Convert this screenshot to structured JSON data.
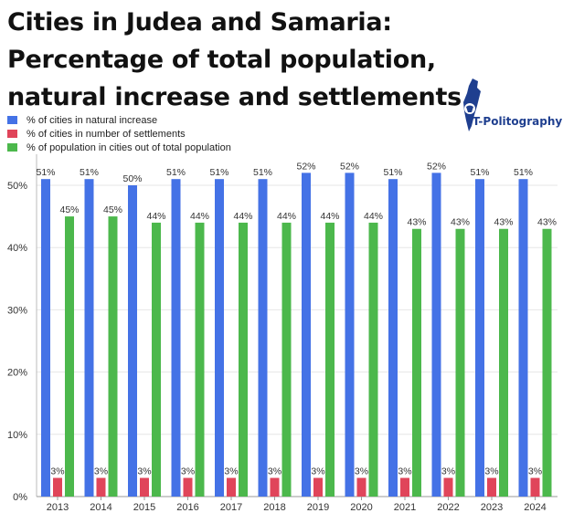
{
  "title": "Cities in Judea and Samaria: Percentage of total population, natural increase and settlements",
  "brand": {
    "name": "T-Politography",
    "icon": "map-icon"
  },
  "chart_data": {
    "type": "bar",
    "title": "Cities in Judea and Samaria: Percentage of total population, natural increase and settlements",
    "xlabel": "",
    "ylabel": "",
    "categories": [
      "2013",
      "2014",
      "2015",
      "2016",
      "2017",
      "2018",
      "2019",
      "2020",
      "2021",
      "2022",
      "2023",
      "2024"
    ],
    "series": [
      {
        "name": "% of cities in natural increase",
        "color": "#4472e6",
        "values": [
          51,
          51,
          50,
          51,
          51,
          51,
          52,
          52,
          51,
          52,
          51,
          51
        ],
        "labels": [
          "51%",
          "51%",
          "50%",
          "51%",
          "51%",
          "51%",
          "52%",
          "52%",
          "51%",
          "52%",
          "51%",
          "51%"
        ]
      },
      {
        "name": "% of cities in number of settlements",
        "color": "#e0455a",
        "values": [
          3,
          3,
          3,
          3,
          3,
          3,
          3,
          3,
          3,
          3,
          3,
          3
        ],
        "labels": [
          "3%",
          "3%",
          "3%",
          "3%",
          "3%",
          "3%",
          "3%",
          "3%",
          "3%",
          "3%",
          "3%",
          "3%"
        ]
      },
      {
        "name": "% of population in cities out of total population",
        "color": "#4cb84c",
        "values": [
          45,
          45,
          44,
          44,
          44,
          44,
          44,
          44,
          43,
          43,
          43,
          43
        ],
        "labels": [
          "45%",
          "45%",
          "44%",
          "44%",
          "44%",
          "44%",
          "44%",
          "44%",
          "43%",
          "43%",
          "43%",
          "43%"
        ]
      }
    ],
    "ylim": [
      0,
      55
    ],
    "yticks": [
      "0%",
      "10%",
      "20%",
      "30%",
      "40%",
      "50%"
    ],
    "grid": true,
    "legend_position": "top-left"
  }
}
